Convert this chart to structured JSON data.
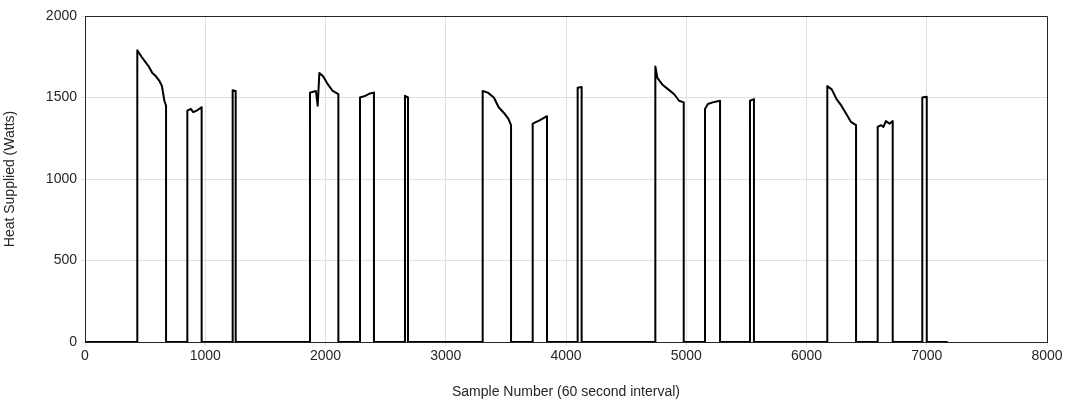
{
  "chart_data": {
    "type": "line",
    "xlabel": "Sample Number (60 second interval)",
    "ylabel": "Heat Supplied (Watts)",
    "xlim": [
      0,
      8000
    ],
    "xticks": [
      0,
      1000,
      2000,
      3000,
      4000,
      5000,
      6000,
      7000,
      8000
    ],
    "ylim": [
      0,
      2000
    ],
    "yticks": [
      0,
      500,
      1000,
      1500,
      2000
    ],
    "grid": true,
    "marker": "none",
    "line_style": "solid",
    "series": [
      {
        "color": "#000000",
        "x": [
          0,
          435,
          435,
          470,
          500,
          530,
          560,
          590,
          620,
          640,
          660,
          674,
          674,
          851,
          851,
          880,
          900,
          930,
          970,
          970,
          1228,
          1228,
          1253,
          1253,
          1871,
          1871,
          1920,
          1935,
          1949,
          1980,
          2020,
          2060,
          2107,
          2107,
          2287,
          2287,
          2330,
          2370,
          2403,
          2403,
          2661,
          2661,
          2686,
          2686,
          3307,
          3307,
          3350,
          3400,
          3440,
          3490,
          3520,
          3543,
          3543,
          3723,
          3723,
          3780,
          3842,
          3842,
          4097,
          4097,
          4130,
          4130,
          4743,
          4743,
          4760,
          4800,
          4850,
          4900,
          4940,
          4979,
          4979,
          5156,
          5156,
          5180,
          5220,
          5281,
          5281,
          5530,
          5530,
          5563,
          5563,
          6173,
          6173,
          6210,
          6250,
          6290,
          6330,
          6370,
          6412,
          6412,
          6592,
          6592,
          6620,
          6640,
          6660,
          6690,
          6717,
          6717,
          6963,
          6963,
          7000,
          7000,
          7174
        ],
        "values": [
          0,
          0,
          1790,
          1750,
          1720,
          1690,
          1650,
          1630,
          1600,
          1570,
          1480,
          1450,
          0,
          0,
          1420,
          1430,
          1410,
          1420,
          1440,
          0,
          0,
          1545,
          1540,
          0,
          0,
          1530,
          1540,
          1450,
          1650,
          1630,
          1580,
          1540,
          1520,
          0,
          0,
          1500,
          1510,
          1525,
          1530,
          0,
          0,
          1510,
          1500,
          0,
          0,
          1540,
          1530,
          1500,
          1440,
          1400,
          1370,
          1330,
          0,
          0,
          1340,
          1360,
          1385,
          0,
          0,
          1560,
          1565,
          0,
          0,
          1690,
          1620,
          1580,
          1550,
          1520,
          1480,
          1470,
          0,
          0,
          1430,
          1460,
          1470,
          1480,
          0,
          0,
          1480,
          1490,
          0,
          0,
          1570,
          1550,
          1490,
          1450,
          1400,
          1350,
          1330,
          0,
          0,
          1320,
          1330,
          1320,
          1355,
          1340,
          1355,
          0,
          0,
          1500,
          1505,
          0,
          0
        ]
      }
    ]
  }
}
